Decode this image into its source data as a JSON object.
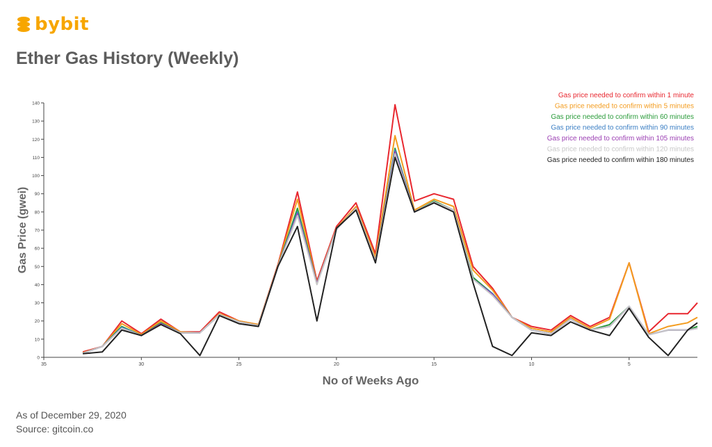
{
  "brand": {
    "name": "bybit",
    "color": "#f7a600"
  },
  "title": "Ether Gas History (Weekly)",
  "footer": {
    "date_line": "As of December 29, 2020",
    "source_line": "Source: gitcoin.co"
  },
  "chart_data": {
    "type": "line",
    "title": "Ether Gas History (Weekly)",
    "xlabel": "No of Weeks Ago",
    "ylabel": "Gas Price (gwei)",
    "xlim": [
      35,
      1.5
    ],
    "ylim": [
      0,
      140
    ],
    "x_ticks": [
      35,
      30,
      25,
      20,
      15,
      10,
      5
    ],
    "y_ticks": [
      0,
      10,
      20,
      30,
      40,
      50,
      60,
      70,
      80,
      90,
      100,
      110,
      120,
      130,
      140
    ],
    "grid": false,
    "legend_position": "top-right",
    "x": [
      33,
      32,
      31,
      30,
      29,
      28,
      27,
      26,
      25,
      24,
      23,
      22,
      21,
      20,
      19,
      18,
      17,
      16,
      15,
      14,
      13,
      12,
      11,
      10,
      9,
      8,
      7,
      6,
      5,
      4,
      3,
      2,
      1.5
    ],
    "series": [
      {
        "name": "Gas price needed to confirm within 1 minute",
        "color": "#e8272f",
        "values": [
          3,
          6,
          20,
          13,
          21,
          14,
          14,
          25,
          20,
          18,
          51,
          91,
          42,
          72,
          85,
          57,
          139,
          86,
          90,
          87,
          50,
          38,
          22,
          17,
          15,
          23,
          17,
          22,
          52,
          14,
          24,
          24,
          30
        ]
      },
      {
        "name": "Gas price needed to confirm within 5 minutes",
        "color": "#f39c1f",
        "values": [
          2.5,
          6,
          18.5,
          12.5,
          20,
          14,
          13.5,
          24,
          20,
          18,
          50.5,
          87,
          41,
          71,
          83,
          55,
          122,
          81,
          87,
          83,
          48,
          37,
          22,
          16,
          14,
          22,
          16,
          21,
          52,
          13,
          17,
          19,
          22
        ]
      },
      {
        "name": "Gas price needed to confirm within 60 minutes",
        "color": "#2a9b3a",
        "values": [
          2.2,
          6,
          17,
          12,
          19,
          13.5,
          13.5,
          23.5,
          19.5,
          17.5,
          50,
          82,
          40.5,
          70.5,
          82,
          53,
          115,
          80,
          86,
          81,
          44,
          35,
          22,
          15,
          13,
          21,
          15,
          18,
          28,
          12.5,
          15,
          15,
          17
        ]
      },
      {
        "name": "Gas price needed to confirm within 90 minutes",
        "color": "#3c7fc4",
        "values": [
          2.2,
          6,
          16.5,
          12,
          18.5,
          13.5,
          13.5,
          23.5,
          19.5,
          17.5,
          50,
          80,
          40.5,
          70.5,
          82,
          53,
          114,
          80,
          85.5,
          81,
          43,
          35,
          22,
          15,
          13,
          21,
          15,
          17,
          28,
          12.5,
          15,
          15,
          16
        ]
      },
      {
        "name": "Gas price needed to confirm within 105 minutes",
        "color": "#9b3fb3",
        "values": [
          2.2,
          6,
          16,
          12,
          18.5,
          13.5,
          13.5,
          23.5,
          19.5,
          17.5,
          50,
          79,
          40.5,
          70.5,
          82,
          53,
          113,
          80,
          85.5,
          81,
          43,
          34.5,
          22,
          15,
          13,
          21,
          15,
          17,
          28,
          12.5,
          15,
          15,
          16
        ]
      },
      {
        "name": "Gas price needed to confirm within 120 minutes",
        "color": "#c8c8c8",
        "values": [
          2.2,
          6,
          16,
          12,
          18,
          13.5,
          13.5,
          23.5,
          19.5,
          17.5,
          50,
          78,
          40,
          70.5,
          82,
          53,
          112,
          80,
          85.5,
          81,
          43,
          34,
          22,
          15,
          13,
          21,
          15,
          17,
          28,
          12.5,
          15,
          15,
          16
        ]
      },
      {
        "name": "Gas price needed to confirm within 180 minutes",
        "color": "#222222",
        "values": [
          2,
          3,
          15,
          12,
          18,
          13,
          1,
          23,
          18.5,
          17,
          50,
          72,
          20,
          71,
          81,
          52,
          110,
          80,
          85,
          80,
          41,
          6,
          1,
          13.5,
          12,
          19.5,
          15,
          12,
          27,
          11,
          1,
          15,
          19
        ]
      }
    ]
  }
}
